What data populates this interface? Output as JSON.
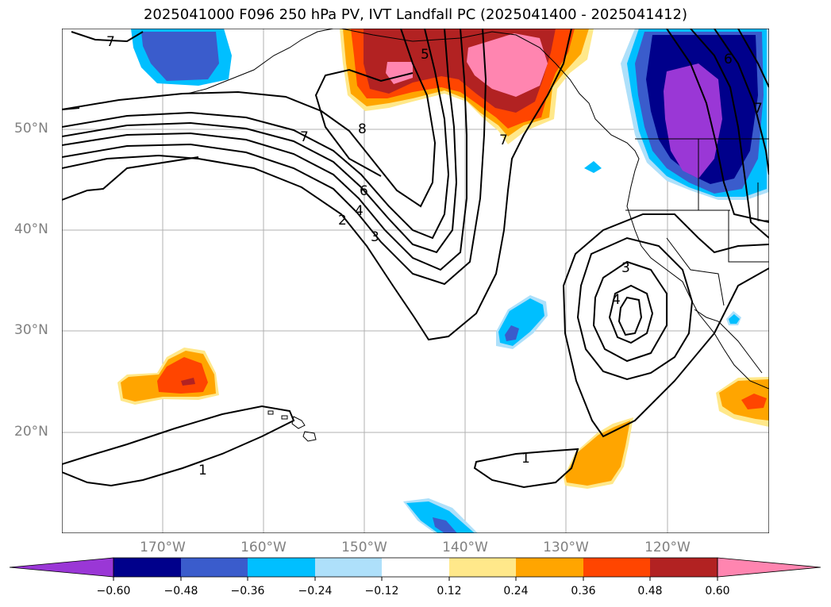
{
  "title": "2025041000 F096 250 hPa PV, IVT Landfall PC (2025041400 - 2025041412)",
  "map": {
    "lat_ticks": [
      "50°N",
      "40°N",
      "30°N",
      "20°N"
    ],
    "lon_ticks": [
      "170°W",
      "160°W",
      "150°W",
      "140°W",
      "130°W",
      "120°W"
    ],
    "grid": true,
    "pv_contour_labels": [
      "7",
      "5",
      "6",
      "8",
      "7",
      "6",
      "4",
      "2",
      "3",
      "7",
      "3",
      "4",
      "1",
      "1",
      "7"
    ]
  },
  "colorbar": {
    "extend": "both",
    "orientation": "horizontal",
    "ticks": [
      "−0.60",
      "−0.48",
      "−0.36",
      "−0.24",
      "−0.12",
      "0.12",
      "0.24",
      "0.36",
      "0.48",
      "0.60"
    ],
    "colors": [
      "#9a37d6",
      "#00008b",
      "#3a5ccc",
      "#00bfff",
      "#aee0fa",
      "#ffffff",
      "#ffe88a",
      "#ffa500",
      "#ff4500",
      "#b22222",
      "#ff85b0"
    ]
  }
}
